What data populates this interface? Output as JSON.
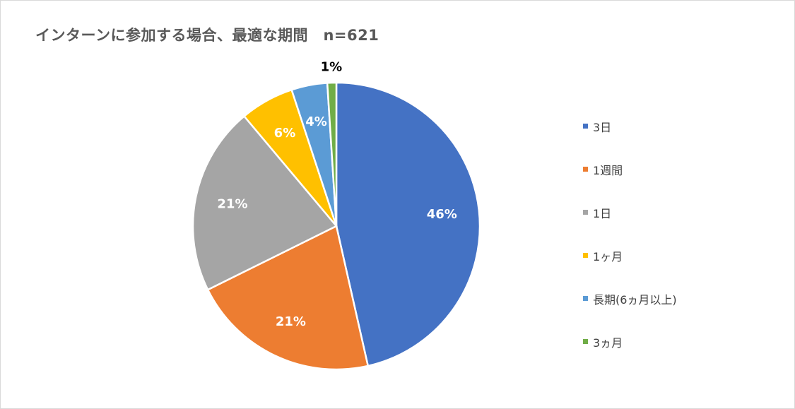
{
  "chart_data": {
    "type": "pie",
    "title": "インターンに参加する場合、最適な期間　n=621",
    "slices": [
      {
        "label": "3日",
        "value": 46,
        "data_label": "46%",
        "color": "#4472C4",
        "label_color": "#ffffff"
      },
      {
        "label": "1週間",
        "value": 21,
        "data_label": "21%",
        "color": "#ED7D31",
        "label_color": "#ffffff"
      },
      {
        "label": "1日",
        "value": 21,
        "data_label": "21%",
        "color": "#A5A5A5",
        "label_color": "#ffffff"
      },
      {
        "label": "1ヶ月",
        "value": 6,
        "data_label": "6%",
        "color": "#FFC000",
        "label_color": "#ffffff"
      },
      {
        "label": "長期(6ヵ月以上)",
        "value": 4,
        "data_label": "4%",
        "color": "#5B9BD5",
        "label_color": "#ffffff"
      },
      {
        "label": "3ヵ月",
        "value": 1,
        "data_label": "1%",
        "color": "#70AD47",
        "label_color": "#000000"
      }
    ],
    "legend_position": "right"
  }
}
